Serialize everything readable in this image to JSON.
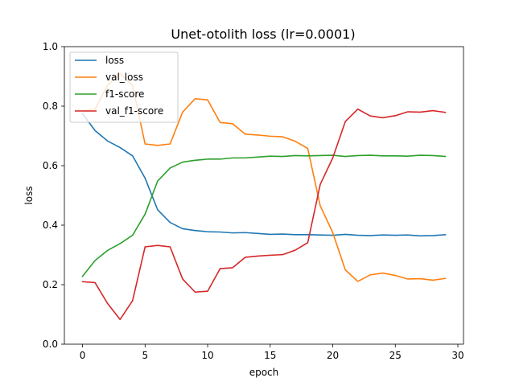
{
  "chart_data": {
    "type": "line",
    "title": "Unet-otolith loss (lr=0.0001)",
    "xlabel": "epoch",
    "ylabel": "loss",
    "xlim": [
      -1.45,
      30.45
    ],
    "ylim": [
      0.0,
      1.0
    ],
    "xticks": [
      0,
      5,
      10,
      15,
      20,
      25,
      30
    ],
    "yticks": [
      0.0,
      0.2,
      0.4,
      0.6,
      0.8,
      1.0
    ],
    "xtick_labels": [
      "0",
      "5",
      "10",
      "15",
      "20",
      "25",
      "30"
    ],
    "ytick_labels": [
      "0.0",
      "0.2",
      "0.4",
      "0.6",
      "0.8",
      "1.0"
    ],
    "grid": false,
    "legend_position": "top-left",
    "x": [
      0,
      1,
      2,
      3,
      4,
      5,
      6,
      7,
      8,
      9,
      10,
      11,
      12,
      13,
      14,
      15,
      16,
      17,
      18,
      19,
      20,
      21,
      22,
      23,
      24,
      25,
      26,
      27,
      28,
      29
    ],
    "series": [
      {
        "name": "loss",
        "color": "#1f77b4",
        "values": [
          0.775,
          0.718,
          0.683,
          0.661,
          0.633,
          0.558,
          0.452,
          0.409,
          0.388,
          0.382,
          0.378,
          0.377,
          0.374,
          0.375,
          0.372,
          0.369,
          0.37,
          0.368,
          0.368,
          0.367,
          0.366,
          0.369,
          0.366,
          0.365,
          0.367,
          0.366,
          0.367,
          0.364,
          0.365,
          0.368
        ]
      },
      {
        "name": "val_loss",
        "color": "#ff7f0e",
        "values": [
          0.785,
          0.79,
          0.87,
          0.91,
          0.87,
          0.673,
          0.668,
          0.673,
          0.78,
          0.825,
          0.821,
          0.745,
          0.741,
          0.706,
          0.703,
          0.699,
          0.697,
          0.682,
          0.658,
          0.465,
          0.375,
          0.25,
          0.211,
          0.233,
          0.239,
          0.231,
          0.219,
          0.22,
          0.215,
          0.221
        ]
      },
      {
        "name": "f1-score",
        "color": "#2ca02c",
        "values": [
          0.228,
          0.281,
          0.315,
          0.338,
          0.366,
          0.437,
          0.548,
          0.592,
          0.612,
          0.618,
          0.622,
          0.622,
          0.626,
          0.626,
          0.629,
          0.632,
          0.631,
          0.634,
          0.633,
          0.634,
          0.635,
          0.631,
          0.634,
          0.635,
          0.633,
          0.633,
          0.632,
          0.635,
          0.634,
          0.631
        ]
      },
      {
        "name": "val_f1-score",
        "color": "#d62728",
        "values": [
          0.21,
          0.207,
          0.137,
          0.083,
          0.146,
          0.327,
          0.332,
          0.327,
          0.219,
          0.175,
          0.178,
          0.254,
          0.257,
          0.292,
          0.296,
          0.299,
          0.301,
          0.316,
          0.341,
          0.537,
          0.626,
          0.748,
          0.79,
          0.767,
          0.761,
          0.768,
          0.781,
          0.78,
          0.785,
          0.779
        ]
      }
    ]
  }
}
